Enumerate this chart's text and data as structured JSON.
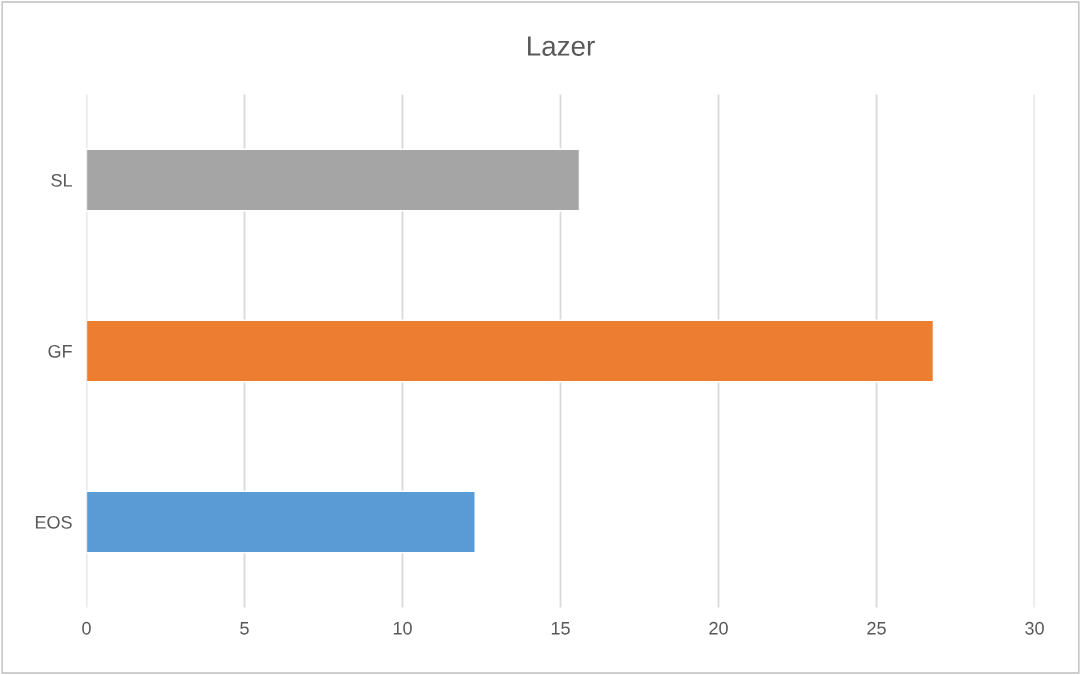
{
  "chart_data": {
    "type": "bar",
    "orientation": "horizontal",
    "title": "Lazer",
    "categories": [
      "SL",
      "GF",
      "EOS"
    ],
    "values": [
      15.6,
      26.8,
      12.3
    ],
    "colors": [
      "#a5a5a5",
      "#ed7d31",
      "#5b9bd5"
    ],
    "xlim": [
      0,
      30
    ],
    "xticks": [
      0,
      5,
      10,
      15,
      20,
      25,
      30
    ],
    "grid": "x"
  }
}
